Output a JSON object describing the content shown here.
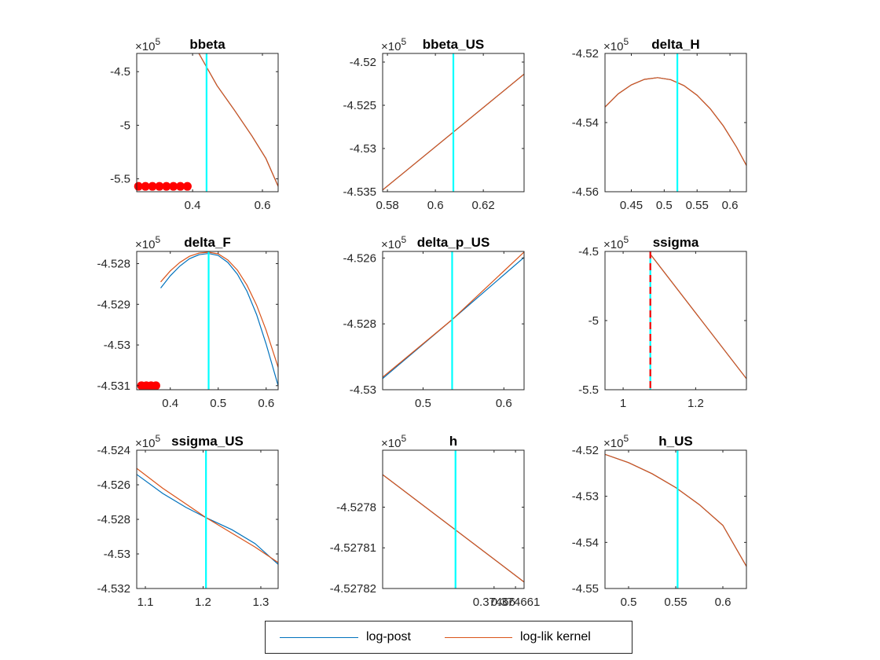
{
  "chart_data": [
    {
      "type": "line",
      "title": "bbeta",
      "xlim": [
        0.24,
        0.645
      ],
      "ylim": [
        -5.62,
        -4.33
      ],
      "xticks": [
        {
          "v": 0.4,
          "label": "0.4"
        },
        {
          "v": 0.6,
          "label": "0.6"
        }
      ],
      "yticks": [
        {
          "v": -4.5,
          "label": "-4.5"
        },
        {
          "v": -5,
          "label": "-5"
        },
        {
          "v": -5.5,
          "label": "-5.5"
        }
      ],
      "exponent": "5",
      "vline": {
        "x": 0.44,
        "style": "solid"
      },
      "series": [
        {
          "color": "#0072BD",
          "x": [
            0.418,
            0.47,
            0.52,
            0.57,
            0.61,
            0.645
          ],
          "y": [
            -4.33,
            -4.63,
            -4.86,
            -5.1,
            -5.31,
            -5.57
          ]
        },
        {
          "color": "#D95319",
          "x": [
            0.418,
            0.47,
            0.52,
            0.57,
            0.61,
            0.645
          ],
          "y": [
            -4.33,
            -4.63,
            -4.86,
            -5.1,
            -5.31,
            -5.57
          ]
        }
      ],
      "markers": {
        "x": [
          0.245,
          0.265,
          0.285,
          0.305,
          0.325,
          0.345,
          0.365,
          0.385
        ],
        "y": -5.57
      }
    },
    {
      "type": "line",
      "title": "bbeta_US",
      "xlim": [
        0.578,
        0.637
      ],
      "ylim": [
        -4.535,
        -4.519
      ],
      "xticks": [
        {
          "v": 0.58,
          "label": "0.58"
        },
        {
          "v": 0.6,
          "label": "0.6"
        },
        {
          "v": 0.62,
          "label": "0.62"
        }
      ],
      "yticks": [
        {
          "v": -4.52,
          "label": "-4.52"
        },
        {
          "v": -4.525,
          "label": "-4.525"
        },
        {
          "v": -4.53,
          "label": "-4.53"
        },
        {
          "v": -4.535,
          "label": "-4.535"
        }
      ],
      "exponent": "5",
      "vline": {
        "x": 0.6075,
        "style": "solid"
      },
      "series": [
        {
          "color": "#0072BD",
          "x": [
            0.578,
            0.637
          ],
          "y": [
            -4.5348,
            -4.5214
          ]
        },
        {
          "color": "#D95319",
          "x": [
            0.578,
            0.637
          ],
          "y": [
            -4.5348,
            -4.5214
          ]
        }
      ]
    },
    {
      "type": "line",
      "title": "delta_H",
      "xlim": [
        0.41,
        0.625
      ],
      "ylim": [
        -4.56,
        -4.52
      ],
      "xticks": [
        {
          "v": 0.45,
          "label": "0.45"
        },
        {
          "v": 0.5,
          "label": "0.5"
        },
        {
          "v": 0.55,
          "label": "0.55"
        },
        {
          "v": 0.6,
          "label": "0.6"
        }
      ],
      "yticks": [
        {
          "v": -4.52,
          "label": "-4.52"
        },
        {
          "v": -4.54,
          "label": "-4.54"
        },
        {
          "v": -4.56,
          "label": "-4.56"
        }
      ],
      "exponent": "5",
      "vline": {
        "x": 0.52,
        "style": "solid"
      },
      "series": [
        {
          "color": "#0072BD",
          "x": [
            0.41,
            0.43,
            0.45,
            0.47,
            0.49,
            0.51,
            0.53,
            0.55,
            0.57,
            0.59,
            0.61,
            0.625
          ],
          "y": [
            -4.5355,
            -4.5317,
            -4.5291,
            -4.5275,
            -4.527,
            -4.5276,
            -4.5293,
            -4.5321,
            -4.536,
            -4.541,
            -4.5471,
            -4.5524
          ]
        },
        {
          "color": "#D95319",
          "x": [
            0.41,
            0.43,
            0.45,
            0.47,
            0.49,
            0.51,
            0.53,
            0.55,
            0.57,
            0.59,
            0.61,
            0.625
          ],
          "y": [
            -4.5355,
            -4.5317,
            -4.5291,
            -4.5275,
            -4.527,
            -4.5276,
            -4.5293,
            -4.5321,
            -4.536,
            -4.541,
            -4.5471,
            -4.5524
          ]
        }
      ]
    },
    {
      "type": "line",
      "title": "delta_F",
      "xlim": [
        0.33,
        0.625
      ],
      "ylim": [
        -4.5311,
        -4.5277
      ],
      "xticks": [
        {
          "v": 0.4,
          "label": "0.4"
        },
        {
          "v": 0.5,
          "label": "0.5"
        },
        {
          "v": 0.6,
          "label": "0.6"
        }
      ],
      "yticks": [
        {
          "v": -4.528,
          "label": "-4.528"
        },
        {
          "v": -4.529,
          "label": "-4.529"
        },
        {
          "v": -4.53,
          "label": "-4.53"
        },
        {
          "v": -4.531,
          "label": "-4.531"
        }
      ],
      "exponent": "5",
      "vline": {
        "x": 0.48,
        "style": "solid"
      },
      "series": [
        {
          "color": "#0072BD",
          "x": [
            0.38,
            0.4,
            0.42,
            0.44,
            0.46,
            0.48,
            0.5,
            0.52,
            0.54,
            0.56,
            0.58,
            0.6,
            0.625
          ],
          "y": [
            -4.5286,
            -4.5283,
            -4.52806,
            -4.52788,
            -4.52778,
            -4.52775,
            -4.5278,
            -4.52797,
            -4.52826,
            -4.52868,
            -4.52925,
            -4.52998,
            -4.531
          ]
        },
        {
          "color": "#D95319",
          "x": [
            0.38,
            0.4,
            0.42,
            0.44,
            0.46,
            0.48,
            0.5,
            0.52,
            0.54,
            0.56,
            0.58,
            0.6,
            0.625
          ],
          "y": [
            -4.52845,
            -4.52818,
            -4.52797,
            -4.52782,
            -4.52774,
            -4.52772,
            -4.52776,
            -4.52791,
            -4.52816,
            -4.52853,
            -4.52902,
            -4.52964,
            -4.53055
          ]
        }
      ],
      "markers": {
        "x": [
          0.34,
          0.35,
          0.36,
          0.37
        ],
        "y": -4.531
      }
    },
    {
      "type": "line",
      "title": "delta_p_US",
      "xlim": [
        0.45,
        0.625
      ],
      "ylim": [
        -4.53,
        -4.5258
      ],
      "xticks": [
        {
          "v": 0.5,
          "label": "0.5"
        },
        {
          "v": 0.6,
          "label": "0.6"
        }
      ],
      "yticks": [
        {
          "v": -4.526,
          "label": "-4.526"
        },
        {
          "v": -4.528,
          "label": "-4.528"
        },
        {
          "v": -4.53,
          "label": "-4.53"
        }
      ],
      "exponent": "5",
      "vline": {
        "x": 0.536,
        "style": "solid"
      },
      "series": [
        {
          "color": "#0072BD",
          "x": [
            0.45,
            0.536,
            0.625
          ],
          "y": [
            -4.52966,
            -4.52787,
            -4.52598
          ]
        },
        {
          "color": "#D95319",
          "x": [
            0.45,
            0.536,
            0.625
          ],
          "y": [
            -4.52962,
            -4.52787,
            -4.52582
          ]
        }
      ]
    },
    {
      "type": "line",
      "title": "ssigma",
      "xlim": [
        0.95,
        1.34
      ],
      "ylim": [
        -5.5,
        -4.5
      ],
      "xticks": [
        {
          "v": 1,
          "label": "1"
        },
        {
          "v": 1.2,
          "label": "1.2"
        }
      ],
      "yticks": [
        {
          "v": -4.5,
          "label": "-4.5"
        },
        {
          "v": -5,
          "label": "-5"
        },
        {
          "v": -5.5,
          "label": "-5.5"
        }
      ],
      "exponent": "5",
      "vline": {
        "x": 1.075,
        "style": "dashed"
      },
      "series": [
        {
          "color": "#0072BD",
          "x": [
            1.075,
            1.34
          ],
          "y": [
            -4.52,
            -5.42
          ]
        },
        {
          "color": "#D95319",
          "x": [
            1.075,
            1.34
          ],
          "y": [
            -4.52,
            -5.42
          ]
        }
      ]
    },
    {
      "type": "line",
      "title": "ssigma_US",
      "xlim": [
        1.085,
        1.33
      ],
      "ylim": [
        -4.532,
        -4.524
      ],
      "xticks": [
        {
          "v": 1.1,
          "label": "1.1"
        },
        {
          "v": 1.2,
          "label": "1.2"
        },
        {
          "v": 1.3,
          "label": "1.3"
        }
      ],
      "yticks": [
        {
          "v": -4.524,
          "label": "-4.524"
        },
        {
          "v": -4.526,
          "label": "-4.526"
        },
        {
          "v": -4.528,
          "label": "-4.528"
        },
        {
          "v": -4.53,
          "label": "-4.53"
        },
        {
          "v": -4.532,
          "label": "-4.532"
        }
      ],
      "exponent": "5",
      "vline": {
        "x": 1.205,
        "style": "solid"
      },
      "series": [
        {
          "color": "#0072BD",
          "x": [
            1.085,
            1.13,
            1.17,
            1.205,
            1.25,
            1.29,
            1.33
          ],
          "y": [
            -4.5254,
            -4.5265,
            -4.5273,
            -4.5279,
            -4.5286,
            -4.5294,
            -4.5306
          ]
        },
        {
          "color": "#D95319",
          "x": [
            1.085,
            1.13,
            1.17,
            1.205,
            1.25,
            1.29,
            1.33
          ],
          "y": [
            -4.52505,
            -4.5262,
            -4.5271,
            -4.5279,
            -4.5288,
            -4.5296,
            -4.5305
          ]
        }
      ]
    },
    {
      "type": "line",
      "title": "h",
      "xlim": [
        0.3746548,
        0.3746614
      ],
      "ylim": [
        -4.52782,
        -4.527786
      ],
      "xticks": [
        {
          "v": 0.37466,
          "label": "0.37466"
        },
        {
          "v": 0.374661,
          "label": "0.374661"
        }
      ],
      "yticks": [
        {
          "v": -4.52781,
          "label": "-4.52781"
        },
        {
          "v": -4.52782,
          "label": "-4.52782"
        }
      ],
      "yticks_top_label": {
        "v": -4.5278,
        "label": "-4.5278"
      },
      "exponent": "5",
      "vline": {
        "x": 0.3746582,
        "style": "solid"
      },
      "series": [
        {
          "color": "#0072BD",
          "x": [
            0.3746548,
            0.3746614
          ],
          "y": [
            -4.527792,
            -4.5278184
          ]
        },
        {
          "color": "#D95319",
          "x": [
            0.3746548,
            0.3746614
          ],
          "y": [
            -4.527792,
            -4.5278184
          ]
        }
      ]
    },
    {
      "type": "line",
      "title": "h_US",
      "xlim": [
        0.475,
        0.625
      ],
      "ylim": [
        -4.55,
        -4.52
      ],
      "xticks": [
        {
          "v": 0.5,
          "label": "0.5"
        },
        {
          "v": 0.55,
          "label": "0.55"
        },
        {
          "v": 0.6,
          "label": "0.6"
        }
      ],
      "yticks": [
        {
          "v": -4.52,
          "label": "-4.52"
        },
        {
          "v": -4.53,
          "label": "-4.53"
        },
        {
          "v": -4.54,
          "label": "-4.54"
        },
        {
          "v": -4.55,
          "label": "-4.55"
        }
      ],
      "exponent": "5",
      "vline": {
        "x": 0.552,
        "style": "solid"
      },
      "series": [
        {
          "color": "#0072BD",
          "x": [
            0.475,
            0.5,
            0.525,
            0.55,
            0.575,
            0.6,
            0.625
          ],
          "y": [
            -4.5209,
            -4.5227,
            -4.5251,
            -4.5281,
            -4.5318,
            -4.5363,
            -4.5452
          ]
        },
        {
          "color": "#D95319",
          "x": [
            0.475,
            0.5,
            0.525,
            0.55,
            0.575,
            0.6,
            0.625
          ],
          "y": [
            -4.5209,
            -4.5227,
            -4.5251,
            -4.5281,
            -4.5318,
            -4.5363,
            -4.5452
          ]
        }
      ]
    }
  ],
  "legend": {
    "placement": "bottom",
    "entries": [
      {
        "label": "log-post",
        "color": "#0072BD"
      },
      {
        "label": "log-lik kernel",
        "color": "#D95319"
      }
    ]
  },
  "colors": {
    "vline": "#00FFFF",
    "marker": "#FF0000",
    "axis": "#262626",
    "dashed_red": "#FF0000"
  }
}
